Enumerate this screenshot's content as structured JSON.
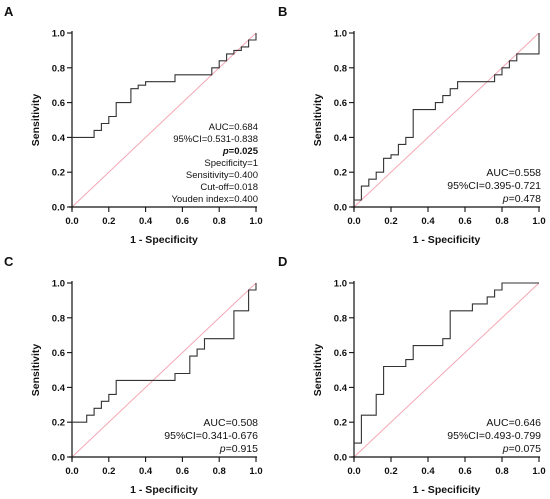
{
  "chart_data": [
    {
      "panel": "A",
      "type": "line",
      "xlabel": "1 - Specificity",
      "ylabel": "Sensitivity",
      "xlim": [
        0,
        1
      ],
      "ylim": [
        0,
        1
      ],
      "xticks": [
        "0.0",
        "0.2",
        "0.4",
        "0.6",
        "0.8",
        "1.0"
      ],
      "yticks": [
        "0.0",
        "0.2",
        "0.4",
        "0.6",
        "0.8",
        "1.0"
      ],
      "reference_line": true,
      "roc": {
        "x": [
          0,
          0.12,
          0.12,
          0.16,
          0.16,
          0.2,
          0.2,
          0.24,
          0.24,
          0.32,
          0.32,
          0.36,
          0.36,
          0.4,
          0.4,
          0.56,
          0.56,
          0.76,
          0.76,
          0.8,
          0.8,
          0.84,
          0.84,
          0.88,
          0.88,
          0.92,
          0.92,
          0.96,
          0.96,
          1.0,
          1.0
        ],
        "y": [
          0.4,
          0.4,
          0.44,
          0.44,
          0.48,
          0.48,
          0.52,
          0.52,
          0.6,
          0.6,
          0.68,
          0.68,
          0.7,
          0.7,
          0.72,
          0.72,
          0.76,
          0.76,
          0.8,
          0.8,
          0.84,
          0.84,
          0.88,
          0.88,
          0.9,
          0.9,
          0.92,
          0.92,
          0.96,
          0.96,
          1.0
        ]
      },
      "annotations": [
        {
          "text": "AUC=0.684",
          "style": "small"
        },
        {
          "text": "95%CI=0.531-0.838",
          "style": "small"
        },
        {
          "text": "p=0.025",
          "style": "bold-italic"
        },
        {
          "text": "Specificity=1",
          "style": "small"
        },
        {
          "text": "Sensitivity=0.400",
          "style": "small"
        },
        {
          "text": "Cut-off=0.018",
          "style": "small"
        },
        {
          "text": "Youden index=0.400",
          "style": "small"
        }
      ]
    },
    {
      "panel": "B",
      "type": "line",
      "xlabel": "1 - Specificity",
      "ylabel": "Sensitivity",
      "xlim": [
        0,
        1
      ],
      "ylim": [
        0,
        1
      ],
      "xticks": [
        "0.0",
        "0.2",
        "0.4",
        "0.6",
        "0.8",
        "1.0"
      ],
      "yticks": [
        "0.0",
        "0.2",
        "0.4",
        "0.6",
        "0.8",
        "1.0"
      ],
      "reference_line": true,
      "roc": {
        "x": [
          0,
          0.04,
          0.04,
          0.08,
          0.08,
          0.12,
          0.12,
          0.16,
          0.16,
          0.2,
          0.2,
          0.24,
          0.24,
          0.28,
          0.28,
          0.32,
          0.32,
          0.44,
          0.44,
          0.48,
          0.48,
          0.52,
          0.52,
          0.56,
          0.56,
          0.76,
          0.76,
          0.8,
          0.8,
          0.84,
          0.84,
          0.88,
          0.88,
          1.0,
          1.0
        ],
        "y": [
          0.04,
          0.04,
          0.12,
          0.12,
          0.16,
          0.16,
          0.2,
          0.2,
          0.28,
          0.28,
          0.3,
          0.3,
          0.36,
          0.36,
          0.4,
          0.4,
          0.56,
          0.56,
          0.6,
          0.6,
          0.64,
          0.64,
          0.68,
          0.68,
          0.72,
          0.72,
          0.76,
          0.76,
          0.8,
          0.8,
          0.84,
          0.84,
          0.88,
          0.88,
          1.0
        ]
      },
      "annotations": [
        {
          "text": "AUC=0.558",
          "style": "normal"
        },
        {
          "text": "95%CI=0.395-0.721",
          "style": "normal"
        },
        {
          "text": "p=0.478",
          "style": "p"
        }
      ]
    },
    {
      "panel": "C",
      "type": "line",
      "xlabel": "1 - Specificity",
      "ylabel": "Sensitivity",
      "xlim": [
        0,
        1
      ],
      "ylim": [
        0,
        1
      ],
      "xticks": [
        "0.0",
        "0.2",
        "0.4",
        "0.6",
        "0.8",
        "1.0"
      ],
      "yticks": [
        "0.0",
        "0.2",
        "0.4",
        "0.6",
        "0.8",
        "1.0"
      ],
      "reference_line": true,
      "roc": {
        "x": [
          0,
          0.08,
          0.08,
          0.12,
          0.12,
          0.16,
          0.16,
          0.2,
          0.2,
          0.24,
          0.24,
          0.56,
          0.56,
          0.64,
          0.64,
          0.68,
          0.68,
          0.72,
          0.72,
          0.88,
          0.88,
          0.96,
          0.96,
          1.0,
          1.0
        ],
        "y": [
          0.2,
          0.2,
          0.24,
          0.24,
          0.28,
          0.28,
          0.32,
          0.32,
          0.36,
          0.36,
          0.44,
          0.44,
          0.48,
          0.48,
          0.58,
          0.58,
          0.62,
          0.62,
          0.68,
          0.68,
          0.84,
          0.84,
          0.96,
          0.96,
          1.0
        ]
      },
      "annotations": [
        {
          "text": "AUC=0.508",
          "style": "normal"
        },
        {
          "text": "95%CI=0.341-0.676",
          "style": "normal"
        },
        {
          "text": "p=0.915",
          "style": "p"
        }
      ]
    },
    {
      "panel": "D",
      "type": "line",
      "xlabel": "1 - Specificity",
      "ylabel": "Sensitivity",
      "xlim": [
        0,
        1
      ],
      "ylim": [
        0,
        1
      ],
      "xticks": [
        "0.0",
        "0.2",
        "0.4",
        "0.6",
        "0.8",
        "1.0"
      ],
      "yticks": [
        "0.0",
        "0.2",
        "0.4",
        "0.6",
        "0.8",
        "1.0"
      ],
      "reference_line": true,
      "roc": {
        "x": [
          0,
          0.04,
          0.04,
          0.12,
          0.12,
          0.16,
          0.16,
          0.28,
          0.28,
          0.32,
          0.32,
          0.48,
          0.48,
          0.52,
          0.52,
          0.64,
          0.64,
          0.72,
          0.72,
          0.76,
          0.76,
          0.8,
          0.8,
          0.84,
          0.84,
          1.0
        ],
        "y": [
          0.08,
          0.08,
          0.24,
          0.24,
          0.36,
          0.36,
          0.52,
          0.52,
          0.56,
          0.56,
          0.64,
          0.64,
          0.68,
          0.68,
          0.84,
          0.84,
          0.88,
          0.88,
          0.92,
          0.92,
          0.96,
          0.96,
          1.0,
          1.0,
          1.0,
          1.0
        ]
      },
      "annotations": [
        {
          "text": "AUC=0.646",
          "style": "normal"
        },
        {
          "text": "95%CI=0.493-0.799",
          "style": "normal"
        },
        {
          "text": "p=0.075",
          "style": "p"
        }
      ]
    }
  ]
}
